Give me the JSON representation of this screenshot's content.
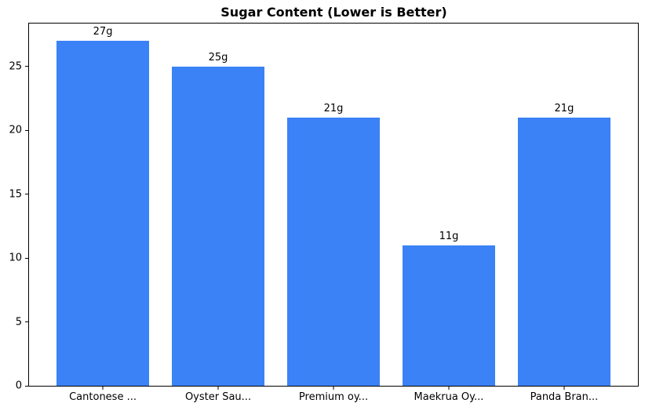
{
  "figure": {
    "background": "#ffffff"
  },
  "chart_data": {
    "type": "bar",
    "title": "Sugar Content (Lower is Better)",
    "categories": [
      "Cantonese ...",
      "Oyster Sau...",
      "Premium oy...",
      "Maekrua Oy...",
      "Panda Bran..."
    ],
    "values": [
      27,
      25,
      21,
      11,
      21
    ],
    "value_labels": [
      "27g",
      "25g",
      "21g",
      "11g",
      "21g"
    ],
    "bar_color": "#3b82f6",
    "axis_color": "#000000",
    "xlabel": "",
    "ylabel": "",
    "ylim": [
      0,
      28.35
    ],
    "xlim": [
      -0.64,
      4.64
    ],
    "yticks": [
      0,
      5,
      10,
      15,
      20,
      25
    ],
    "bar_width_fraction": 0.8,
    "grid": false,
    "legend": null
  }
}
